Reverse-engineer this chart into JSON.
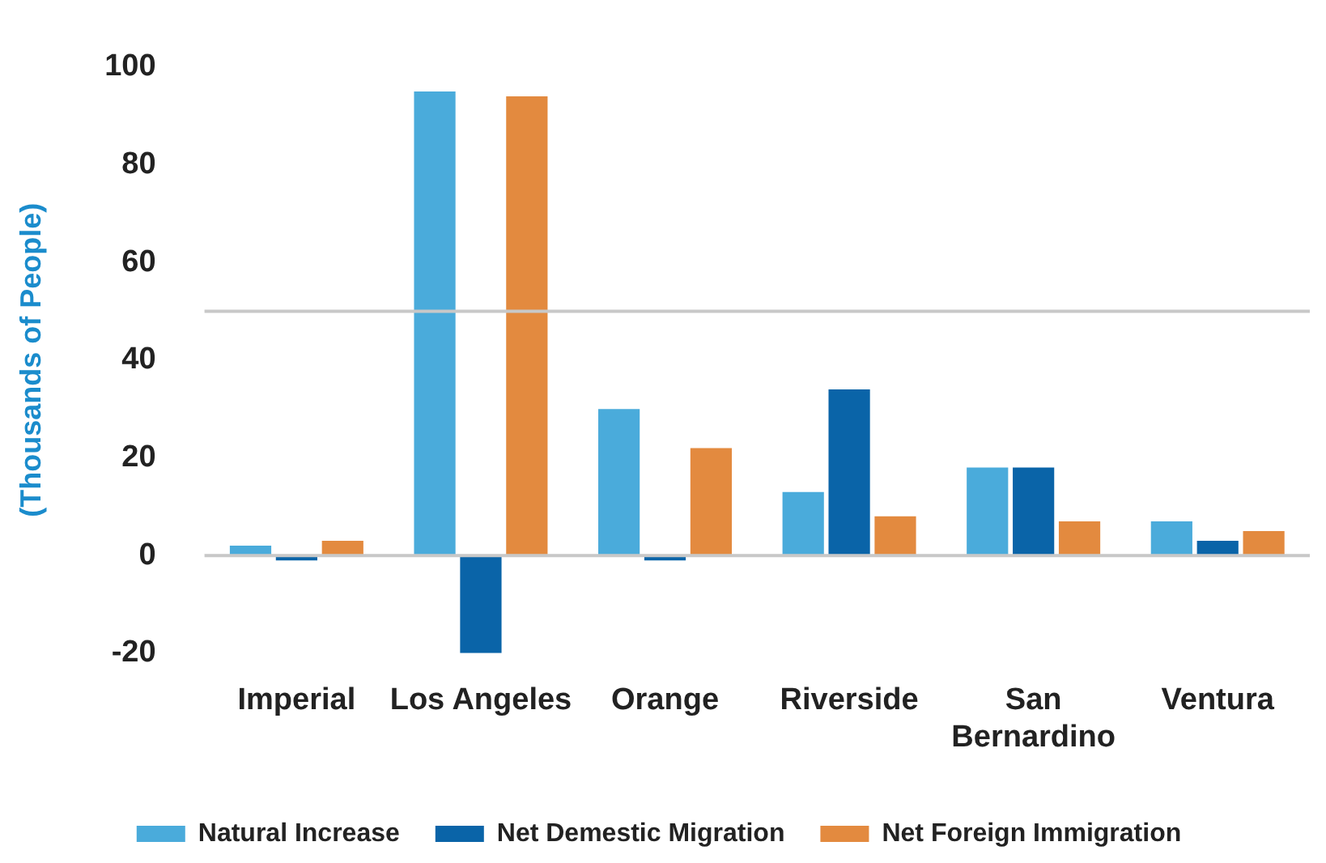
{
  "chart_data": {
    "type": "bar",
    "ylabel": "(Thousands of People)",
    "categories": [
      "Imperial",
      "Los Angeles",
      "Orange",
      "Riverside",
      "San Bernardino",
      "Ventura"
    ],
    "series": [
      {
        "name": "Natural Increase",
        "color": "#4aabdb",
        "values": [
          2,
          95,
          30,
          13,
          18,
          7
        ]
      },
      {
        "name": "Net Demestic Migration",
        "color": "#0a64a8",
        "values": [
          -1,
          -20,
          -1,
          34,
          18,
          3
        ]
      },
      {
        "name": "Net Foreign Immigration",
        "color": "#e38a3f",
        "values": [
          3,
          94,
          22,
          8,
          7,
          5
        ]
      }
    ],
    "ylim": [
      -20,
      100
    ],
    "yticks": [
      -20,
      0,
      20,
      40,
      60,
      80,
      100
    ],
    "grid": false,
    "legend": "bottom",
    "ref_lines": [
      {
        "axis": "y",
        "value": 0,
        "color": "#c8c8c8"
      },
      {
        "axis": "y",
        "value": 50,
        "color": "#c8c8c8"
      }
    ]
  }
}
